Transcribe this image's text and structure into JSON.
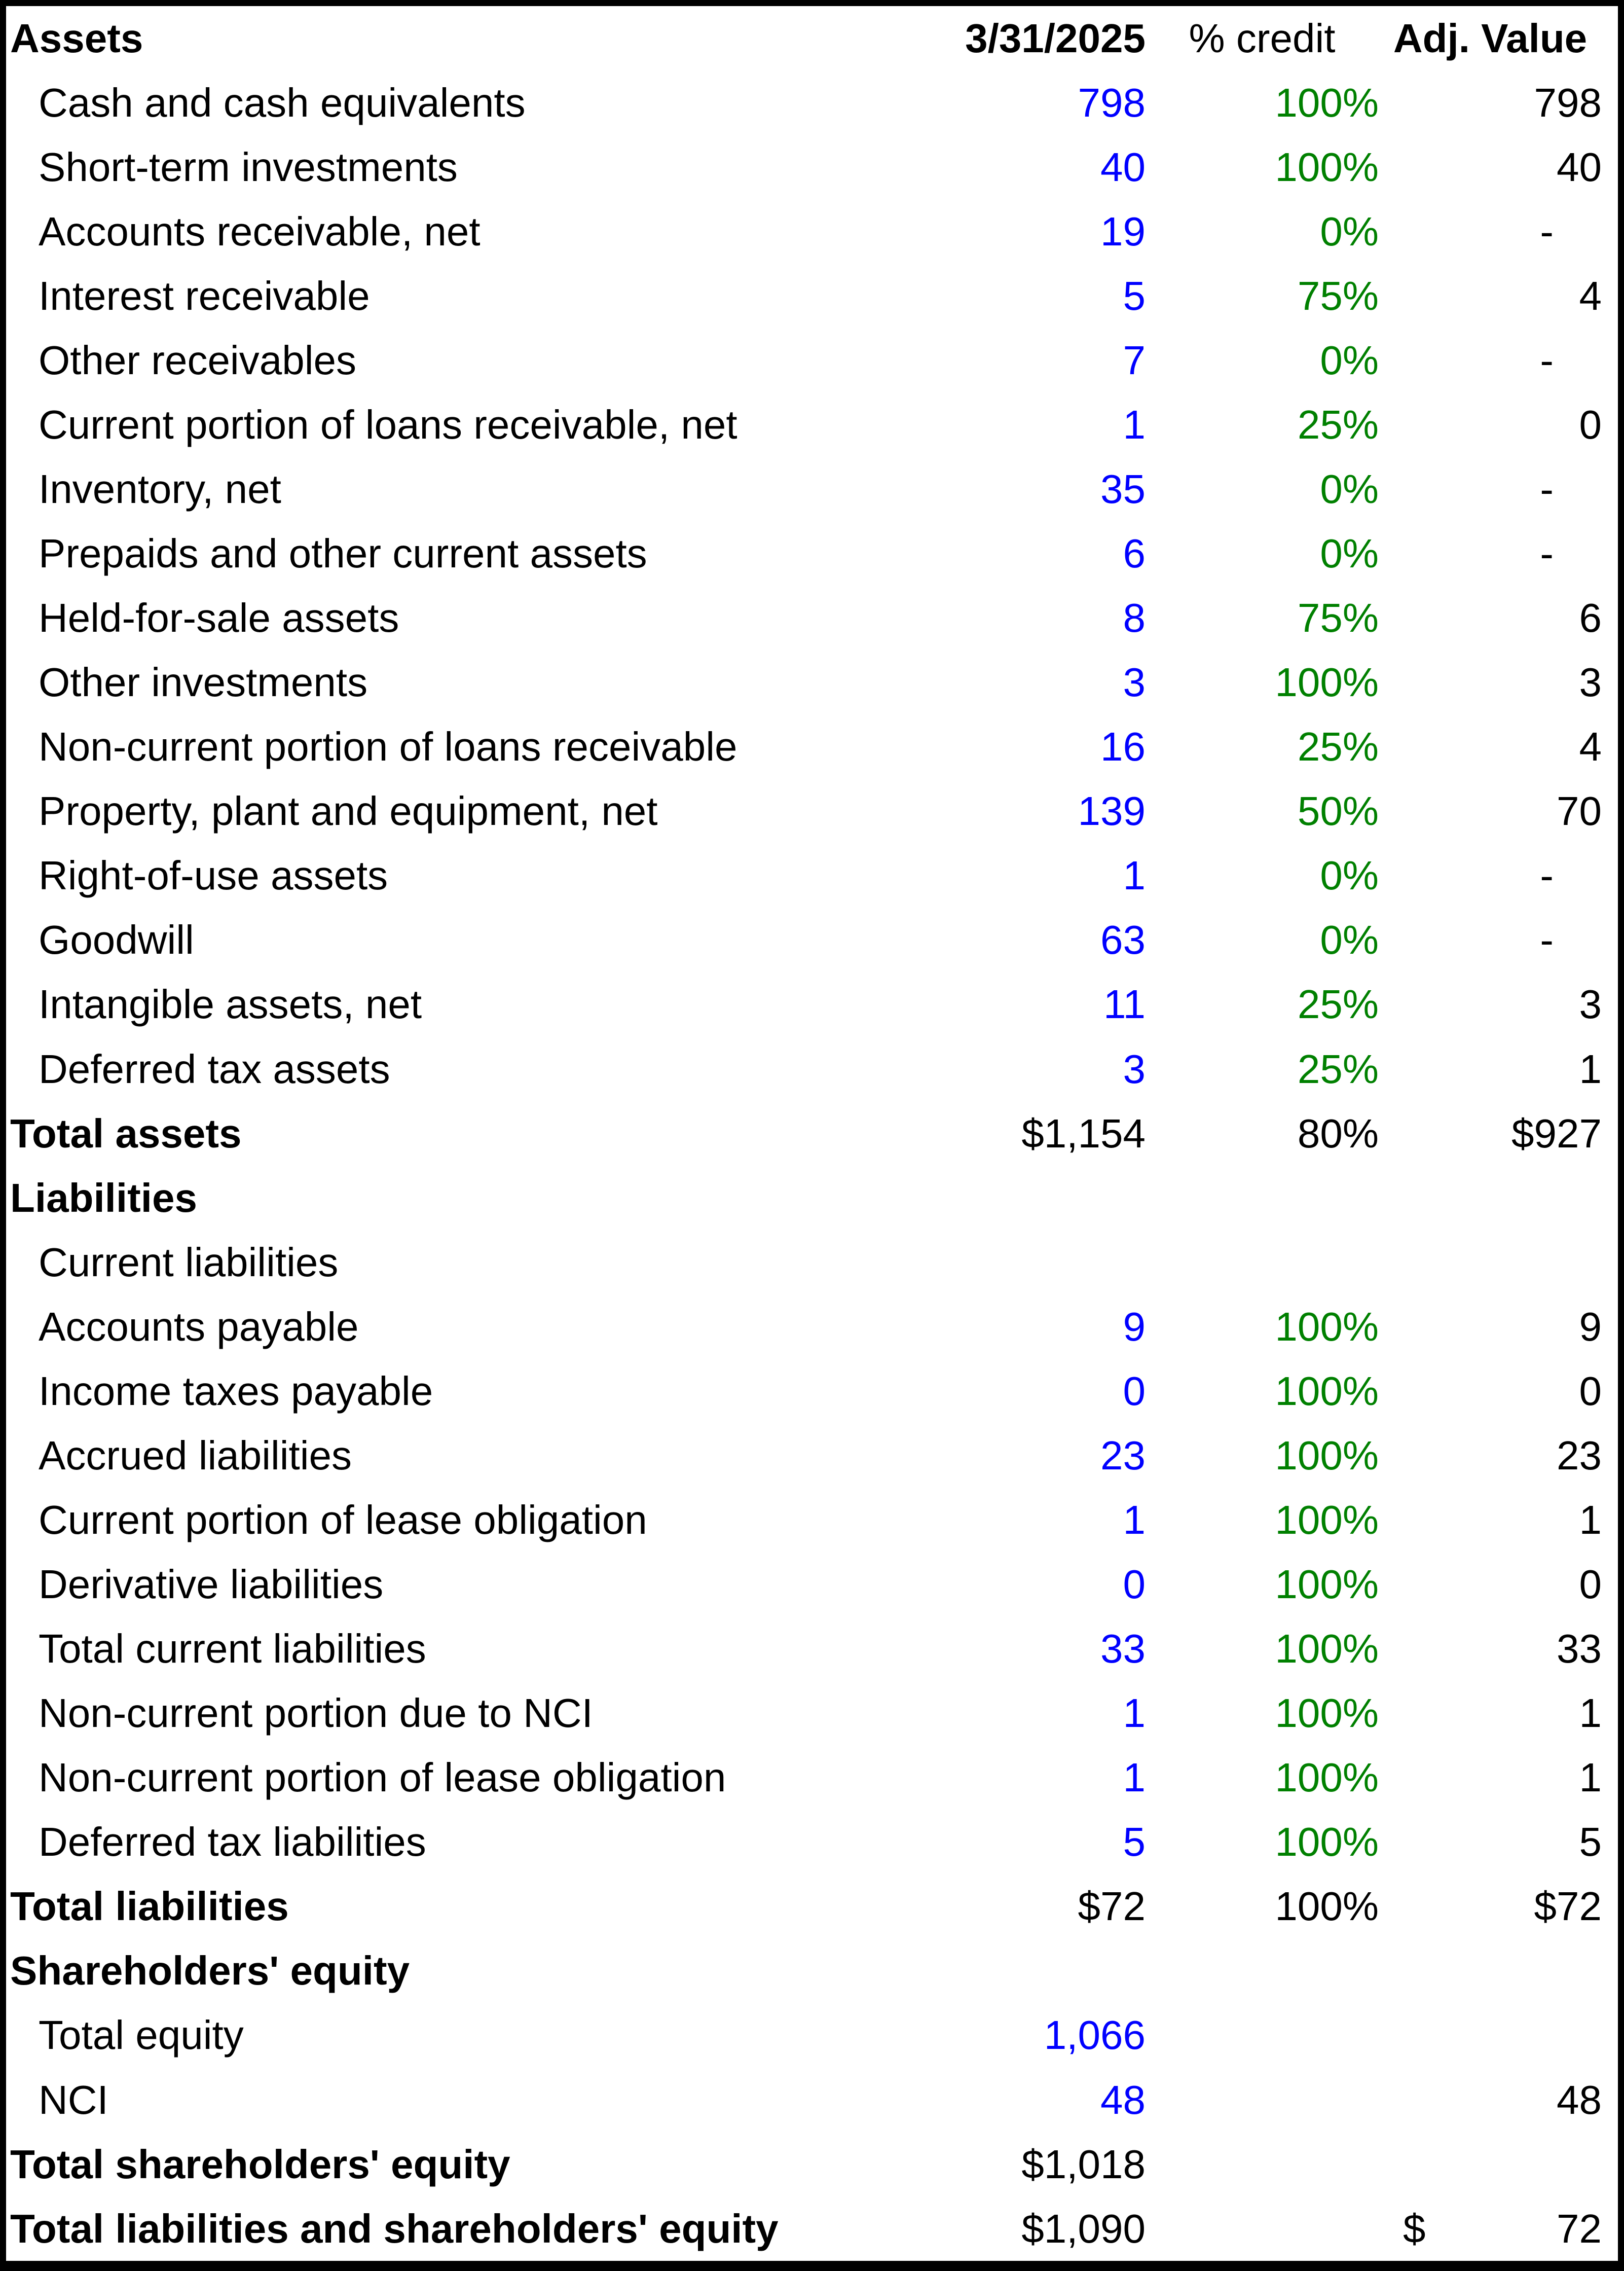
{
  "colors": {
    "value_blue": "#0000ff",
    "pct_green": "#008000",
    "text_black": "#000000",
    "border_black": "#000000",
    "background_white": "#ffffff"
  },
  "header": {
    "label": "Assets",
    "date": "3/31/2025",
    "pct": "% credit",
    "adj": "Adj. Value"
  },
  "rows": [
    {
      "label": "Cash and cash equivalents",
      "indent": true,
      "value": "798",
      "value_color": "blue",
      "pct": "100%",
      "pct_color": "green",
      "adj": "798"
    },
    {
      "label": "Short-term investments",
      "indent": true,
      "value": "40",
      "value_color": "blue",
      "pct": "100%",
      "pct_color": "green",
      "adj": "40"
    },
    {
      "label": "Accounts receivable, net",
      "indent": true,
      "value": "19",
      "value_color": "blue",
      "pct": "0%",
      "pct_color": "green",
      "adj": "-"
    },
    {
      "label": "Interest receivable",
      "indent": true,
      "value": "5",
      "value_color": "blue",
      "pct": "75%",
      "pct_color": "green",
      "adj": "4"
    },
    {
      "label": "Other receivables",
      "indent": true,
      "value": "7",
      "value_color": "blue",
      "pct": "0%",
      "pct_color": "green",
      "adj": "-"
    },
    {
      "label": "Current portion of loans receivable, net",
      "indent": true,
      "value": "1",
      "value_color": "blue",
      "pct": "25%",
      "pct_color": "green",
      "adj": "0"
    },
    {
      "label": "Inventory, net",
      "indent": true,
      "value": "35",
      "value_color": "blue",
      "pct": "0%",
      "pct_color": "green",
      "adj": "-"
    },
    {
      "label": "Prepaids and other current assets",
      "indent": true,
      "value": "6",
      "value_color": "blue",
      "pct": "0%",
      "pct_color": "green",
      "adj": "-"
    },
    {
      "label": "Held-for-sale assets",
      "indent": true,
      "value": "8",
      "value_color": "blue",
      "pct": "75%",
      "pct_color": "green",
      "adj": "6"
    },
    {
      "label": "Other investments",
      "indent": true,
      "value": "3",
      "value_color": "blue",
      "pct": "100%",
      "pct_color": "green",
      "adj": "3"
    },
    {
      "label": "Non-current portion of loans receivable",
      "indent": true,
      "value": "16",
      "value_color": "blue",
      "pct": "25%",
      "pct_color": "green",
      "adj": "4"
    },
    {
      "label": "Property, plant and equipment, net",
      "indent": true,
      "value": "139",
      "value_color": "blue",
      "pct": "50%",
      "pct_color": "green",
      "adj": "70"
    },
    {
      "label": "Right-of-use assets",
      "indent": true,
      "value": "1",
      "value_color": "blue",
      "pct": "0%",
      "pct_color": "green",
      "adj": "-"
    },
    {
      "label": "Goodwill",
      "indent": true,
      "value": "63",
      "value_color": "blue",
      "pct": "0%",
      "pct_color": "green",
      "adj": "-"
    },
    {
      "label": "Intangible assets, net",
      "indent": true,
      "value": "11",
      "value_color": "blue",
      "pct": "25%",
      "pct_color": "green",
      "adj": "3"
    },
    {
      "label": "Deferred tax assets",
      "indent": true,
      "value": "3",
      "value_color": "blue",
      "pct": "25%",
      "pct_color": "green",
      "adj": "1"
    },
    {
      "label": "Total assets",
      "bold": true,
      "value": "$1,154",
      "value_color": "black",
      "pct": "80%",
      "pct_color": "black",
      "adj": "$927"
    },
    {
      "label": "Liabilities",
      "bold": true
    },
    {
      "label": "Current liabilities",
      "indent": true
    },
    {
      "label": "Accounts payable",
      "indent": true,
      "value": "9",
      "value_color": "blue",
      "pct": "100%",
      "pct_color": "green",
      "adj": "9"
    },
    {
      "label": "Income taxes payable",
      "indent": true,
      "value": "0",
      "value_color": "blue",
      "pct": "100%",
      "pct_color": "green",
      "adj": "0"
    },
    {
      "label": "Accrued liabilities",
      "indent": true,
      "value": "23",
      "value_color": "blue",
      "pct": "100%",
      "pct_color": "green",
      "adj": "23"
    },
    {
      "label": "Current portion of lease obligation",
      "indent": true,
      "value": "1",
      "value_color": "blue",
      "pct": "100%",
      "pct_color": "green",
      "adj": "1"
    },
    {
      "label": "Derivative liabilities",
      "indent": true,
      "value": "0",
      "value_color": "blue",
      "pct": "100%",
      "pct_color": "green",
      "adj": "0"
    },
    {
      "label": "Total current liabilities",
      "indent": true,
      "value": "33",
      "value_color": "blue",
      "pct": "100%",
      "pct_color": "green",
      "adj": "33"
    },
    {
      "label": "Non-current portion due to NCI",
      "indent": true,
      "value": "1",
      "value_color": "blue",
      "pct": "100%",
      "pct_color": "green",
      "adj": "1"
    },
    {
      "label": "Non-current portion of lease obligation",
      "indent": true,
      "value": "1",
      "value_color": "blue",
      "pct": "100%",
      "pct_color": "green",
      "adj": "1"
    },
    {
      "label": "Deferred tax liabilities",
      "indent": true,
      "value": "5",
      "value_color": "blue",
      "pct": "100%",
      "pct_color": "green",
      "adj": "5"
    },
    {
      "label": "Total liabilities",
      "bold": true,
      "value": "$72",
      "value_color": "black",
      "pct": "100%",
      "pct_color": "black",
      "adj": "$72"
    },
    {
      "label": "Shareholders' equity",
      "bold": true
    },
    {
      "label": "Total equity",
      "indent": true,
      "value": "1,066",
      "value_color": "blue"
    },
    {
      "label": "NCI",
      "indent": true,
      "value": "48",
      "value_color": "blue",
      "adj": "48"
    },
    {
      "label": "Total shareholders' equity",
      "bold": true,
      "value": "$1,018",
      "value_color": "black"
    },
    {
      "label": "Total liabilities and shareholders' equity",
      "bold": true,
      "value": "$1,090",
      "value_color": "black",
      "adj_currency": "$",
      "adj": "72"
    }
  ]
}
